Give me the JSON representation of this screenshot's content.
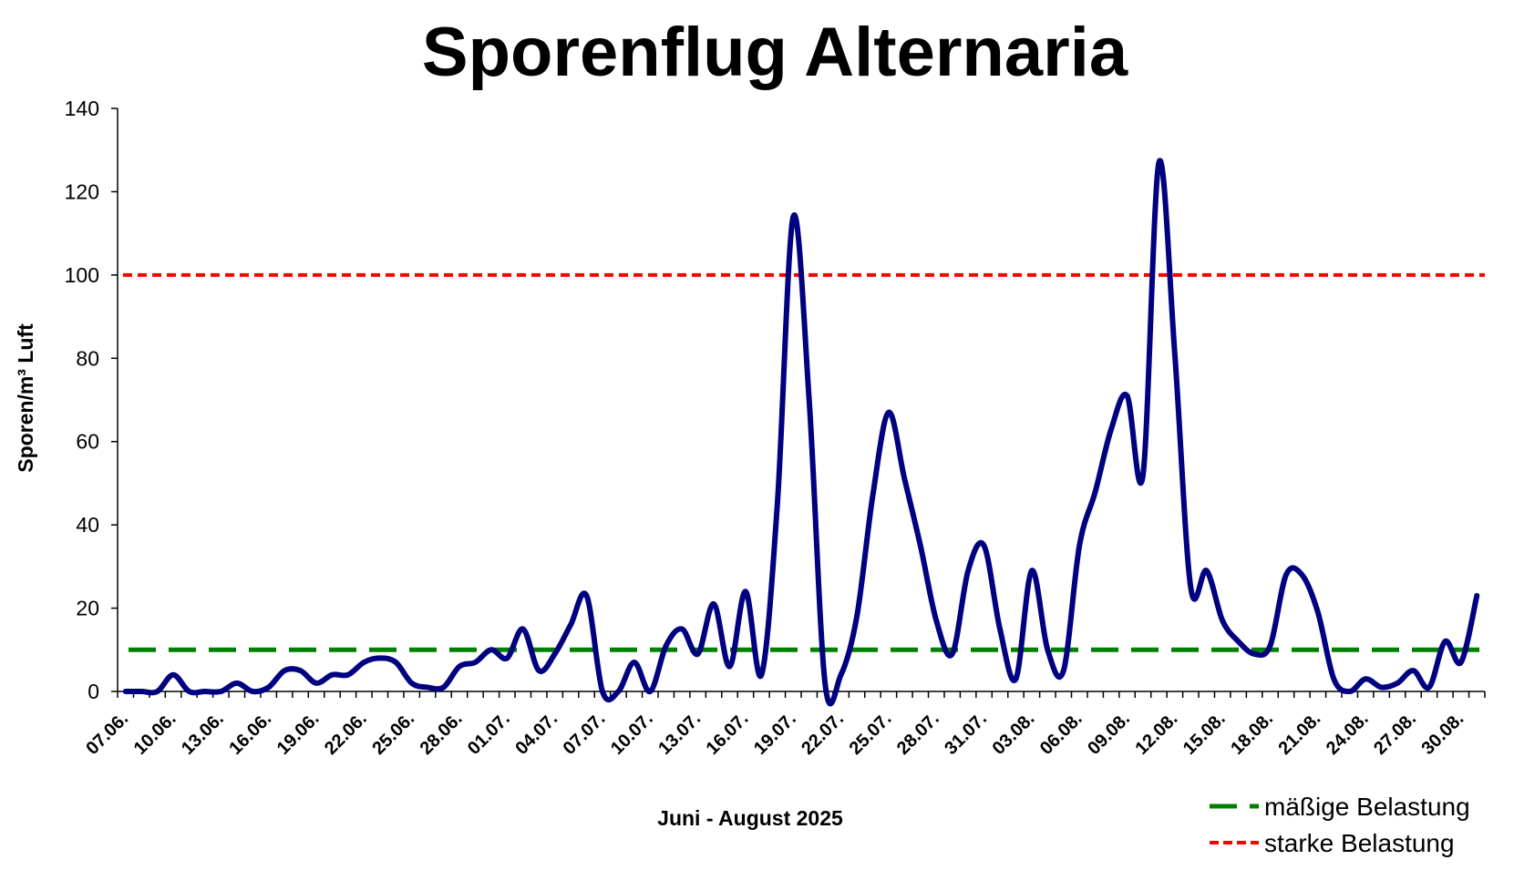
{
  "chart_data": {
    "type": "line",
    "title": "Sporenflug Alternaria",
    "xlabel": "Juni - August 2025",
    "ylabel": "Sporen/m³ Luft",
    "ylim": [
      0,
      140
    ],
    "yticks": [
      0,
      20,
      40,
      60,
      80,
      100,
      120,
      140
    ],
    "grid": false,
    "legend_position": "bottom-right",
    "categories": [
      "07.06.",
      "08.06.",
      "09.06.",
      "10.06.",
      "11.06.",
      "12.06.",
      "13.06.",
      "14.06.",
      "15.06.",
      "16.06.",
      "17.06.",
      "18.06.",
      "19.06.",
      "20.06.",
      "21.06.",
      "22.06.",
      "23.06.",
      "24.06.",
      "25.06.",
      "26.06.",
      "27.06.",
      "28.06.",
      "29.06.",
      "30.06.",
      "01.07.",
      "02.07.",
      "03.07.",
      "04.07.",
      "05.07.",
      "06.07.",
      "07.07.",
      "08.07.",
      "09.07.",
      "10.07.",
      "11.07.",
      "12.07.",
      "13.07.",
      "14.07.",
      "15.07.",
      "16.07.",
      "17.07.",
      "18.07.",
      "19.07.",
      "20.07.",
      "21.07.",
      "22.07.",
      "23.07.",
      "24.07.",
      "25.07.",
      "26.07.",
      "27.07.",
      "28.07.",
      "29.07.",
      "30.07.",
      "31.07.",
      "01.08.",
      "02.08.",
      "03.08.",
      "04.08.",
      "05.08.",
      "06.08.",
      "07.08.",
      "08.08.",
      "09.08.",
      "10.08.",
      "11.08.",
      "12.08.",
      "13.08.",
      "14.08.",
      "15.08.",
      "16.08.",
      "17.08.",
      "18.08.",
      "19.08.",
      "20.08.",
      "21.08.",
      "22.08.",
      "23.08.",
      "24.08.",
      "25.08.",
      "26.08.",
      "27.08.",
      "28.08.",
      "29.08.",
      "30.08.",
      "31.08."
    ],
    "tick_label_every": 3,
    "series": [
      {
        "name": "Alternaria",
        "color": "#000080",
        "values": [
          0,
          0,
          0,
          4,
          0,
          0,
          0,
          2,
          0,
          1,
          5,
          5,
          2,
          4,
          4,
          7,
          8,
          7,
          2,
          1,
          1,
          6,
          7,
          10,
          8,
          15,
          5,
          9,
          16,
          23,
          0,
          0,
          7,
          0,
          11,
          15,
          9,
          21,
          6,
          24,
          4,
          45,
          114,
          70,
          2,
          4,
          18,
          47,
          67,
          51,
          35,
          17,
          9,
          29,
          35,
          15,
          3,
          29,
          10,
          5,
          35,
          48,
          63,
          71,
          52,
          127,
          81,
          25,
          29,
          17,
          12,
          9,
          11,
          28,
          28,
          19,
          3,
          0,
          3,
          1,
          2,
          5,
          1,
          12,
          7,
          23
        ]
      }
    ],
    "thresholds": [
      {
        "name": "mäßige Belastung",
        "value": 10,
        "color": "#008000",
        "style": "long-dash"
      },
      {
        "name": "starke Belastung",
        "value": 100,
        "color": "#ff0000",
        "style": "short-dash"
      }
    ]
  }
}
